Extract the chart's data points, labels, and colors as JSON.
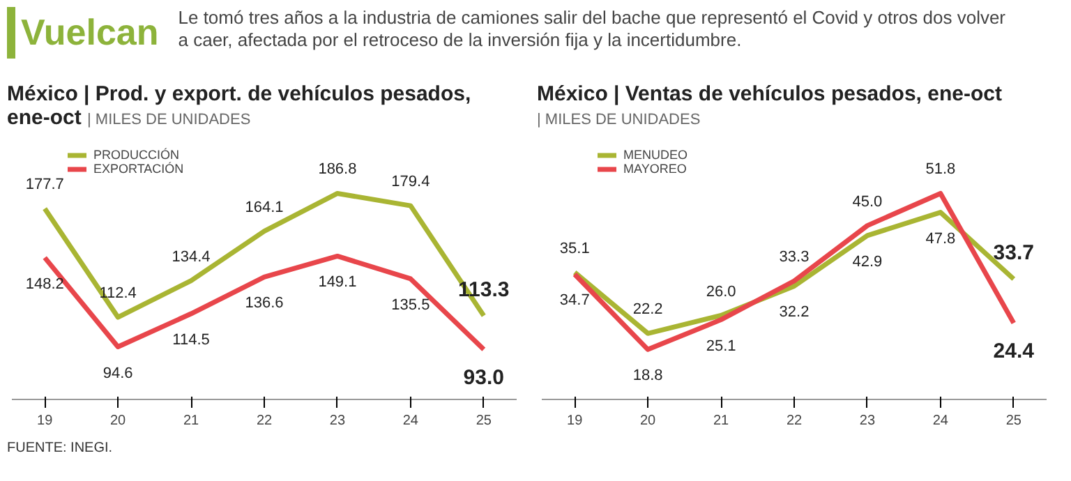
{
  "chart_data": [
    {
      "type": "line",
      "title": "México | Prod. y export. de vehículos pesados, ene-oct",
      "subtitle": "| MILES DE UNIDADES",
      "categories": [
        "19",
        "20",
        "21",
        "22",
        "23",
        "24",
        "25"
      ],
      "series": [
        {
          "name": "PRODUCCIÓN",
          "color": "#a9b533",
          "values": [
            177.7,
            112.4,
            134.4,
            164.1,
            186.8,
            179.4,
            113.3
          ],
          "value_labels": [
            "177.7",
            "112.4",
            "134.4",
            "164.1",
            "186.8",
            "179.4",
            "113.3"
          ]
        },
        {
          "name": "EXPORTACIÓN",
          "color": "#e8464b",
          "values": [
            148.2,
            94.6,
            114.5,
            136.6,
            149.1,
            135.5,
            93.0
          ],
          "value_labels": [
            "148.2",
            "94.6",
            "114.5",
            "136.6",
            "149.1",
            "135.5",
            "93.0"
          ]
        }
      ],
      "legend": "top left",
      "marker": "none",
      "grid": false,
      "annotations": [
        "Vuelcan",
        "Le tomó tres años a la industria de camiones salir del bache que representó el Covid y otros dos volver a caer, afectada por el retroceso de la inversión fija y la incertidumbre.",
        "FUENTE: INEGI."
      ]
    },
    {
      "type": "line",
      "title": "México | Ventas de vehículos pesados, ene-oct",
      "subtitle": "| MILES DE UNIDADES",
      "categories": [
        "19",
        "20",
        "21",
        "22",
        "23",
        "24",
        "25"
      ],
      "series": [
        {
          "name": "MENUDEO",
          "color": "#a9b533",
          "values": [
            35.1,
            22.2,
            26.0,
            32.2,
            42.9,
            47.8,
            33.7
          ],
          "value_labels": [
            "35.1",
            "22.2",
            "26.0",
            "32.2",
            "42.9",
            "47.8",
            "33.7"
          ]
        },
        {
          "name": "MAYOREO",
          "color": "#e8464b",
          "values": [
            34.7,
            18.8,
            25.1,
            33.3,
            45.0,
            51.8,
            24.4
          ],
          "value_labels": [
            "34.7",
            "18.8",
            "25.1",
            "33.3",
            "45.0",
            "51.8",
            "24.4"
          ]
        }
      ],
      "legend": "top left",
      "marker": "none",
      "grid": false
    }
  ]
}
